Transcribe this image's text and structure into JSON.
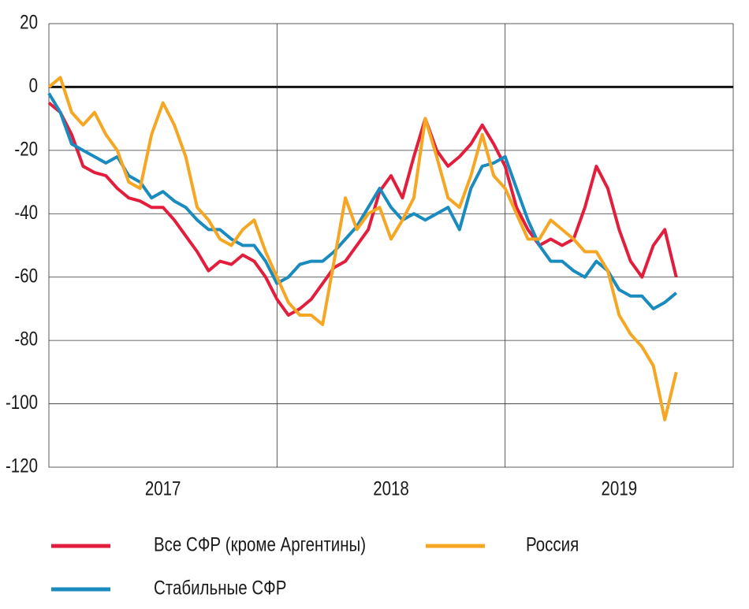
{
  "chart_data": {
    "type": "line",
    "x": [
      2017,
      2017.05,
      2017.1,
      2017.15,
      2017.2,
      2017.25,
      2017.3,
      2017.35,
      2017.4,
      2017.45,
      2017.5,
      2017.55,
      2017.6,
      2017.65,
      2017.7,
      2017.75,
      2017.8,
      2017.85,
      2017.9,
      2017.95,
      2018,
      2018.05,
      2018.1,
      2018.15,
      2018.2,
      2018.25,
      2018.3,
      2018.35,
      2018.4,
      2018.45,
      2018.5,
      2018.55,
      2018.6,
      2018.65,
      2018.7,
      2018.75,
      2018.8,
      2018.85,
      2018.9,
      2018.95,
      2019,
      2019.05,
      2019.1,
      2019.15,
      2019.2,
      2019.25,
      2019.3,
      2019.35,
      2019.4,
      2019.45,
      2019.5,
      2019.55,
      2019.6,
      2019.65,
      2019.7,
      2019.75
    ],
    "series": [
      {
        "name": "Все СФР (кроме Аргентины)",
        "color": "#e31e3c",
        "values": [
          -5,
          -8,
          -15,
          -25,
          -27,
          -28,
          -32,
          -35,
          -36,
          -38,
          -38,
          -42,
          -47,
          -52,
          -58,
          -55,
          -56,
          -53,
          -55,
          -60,
          -67,
          -72,
          -70,
          -67,
          -62,
          -57,
          -55,
          -50,
          -45,
          -33,
          -28,
          -35,
          -22,
          -10,
          -20,
          -25,
          -22,
          -18,
          -12,
          -18,
          -25,
          -38,
          -45,
          -50,
          -48,
          -50,
          -48,
          -38,
          -25,
          -32,
          -45,
          -55,
          -60,
          -50,
          -45,
          -60
        ]
      },
      {
        "name": "Стабильные СФР",
        "color": "#1a8bbf",
        "values": [
          -2,
          -8,
          -18,
          -20,
          -22,
          -24,
          -22,
          -28,
          -30,
          -35,
          -33,
          -36,
          -38,
          -42,
          -45,
          -45,
          -48,
          -50,
          -50,
          -55,
          -62,
          -60,
          -56,
          -55,
          -55,
          -52,
          -48,
          -44,
          -38,
          -32,
          -38,
          -42,
          -40,
          -42,
          -40,
          -38,
          -45,
          -32,
          -25,
          -24,
          -22,
          -32,
          -42,
          -50,
          -55,
          -55,
          -58,
          -60,
          -55,
          -58,
          -64,
          -66,
          -66,
          -70,
          -68,
          -65
        ]
      },
      {
        "name": "Россия",
        "color": "#f5a623",
        "values": [
          0,
          3,
          -8,
          -12,
          -8,
          -15,
          -20,
          -30,
          -32,
          -15,
          -5,
          -12,
          -22,
          -38,
          -42,
          -48,
          -50,
          -45,
          -42,
          -52,
          -60,
          -68,
          -72,
          -72,
          -75,
          -55,
          -35,
          -45,
          -40,
          -38,
          -48,
          -42,
          -35,
          -10,
          -22,
          -35,
          -38,
          -28,
          -15,
          -28,
          -32,
          -40,
          -48,
          -48,
          -42,
          -45,
          -48,
          -52,
          -52,
          -58,
          -72,
          -78,
          -82,
          -88,
          -105,
          -90
        ]
      }
    ],
    "xlim": [
      2017,
      2020
    ],
    "xticks": [
      {
        "value": 2017.5,
        "label": "2017"
      },
      {
        "value": 2018.5,
        "label": "2018"
      },
      {
        "value": 2019.5,
        "label": "2019"
      }
    ],
    "xgrid": [
      2018,
      2019
    ],
    "ylim": [
      -120,
      20
    ],
    "yticks": [
      20,
      0,
      -20,
      -40,
      -60,
      -80,
      -100,
      -120
    ],
    "grid": true,
    "zero_line": true
  }
}
